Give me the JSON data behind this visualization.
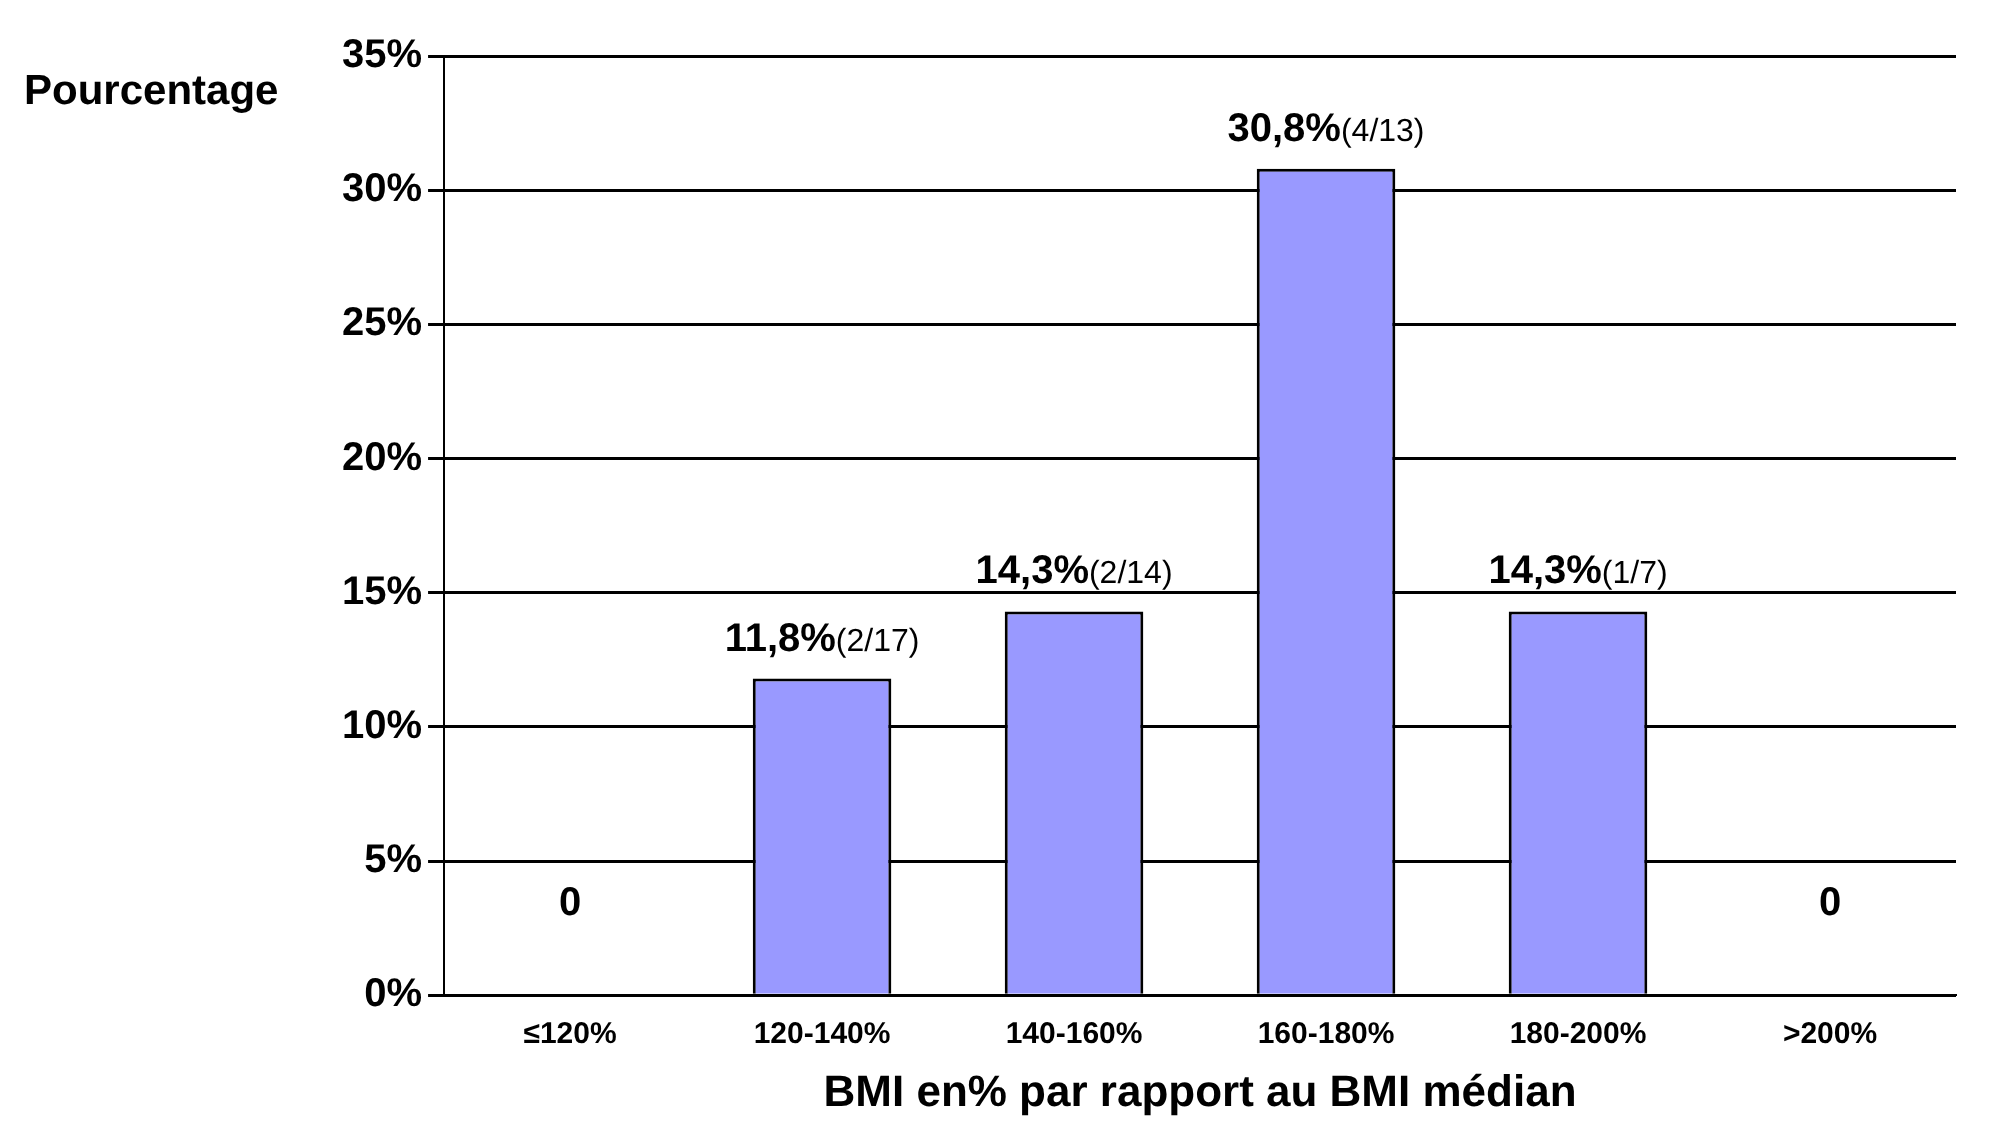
{
  "chart_data": {
    "type": "bar",
    "xlabel": "BMI en% par rapport au BMI médian",
    "ylabel": "Pourcentage",
    "categories": [
      "≤120%",
      "120-140%",
      "140-160%",
      "160-180%",
      "180-200%",
      ">200%"
    ],
    "values": [
      0,
      11.8,
      14.3,
      30.8,
      14.3,
      0
    ],
    "value_labels": [
      "0",
      "11,8%(2/17)",
      "14,3%(2/14)",
      "30,8%(4/13)",
      "14,3%(1/7)",
      "0"
    ],
    "color": "#9999ff",
    "ylim": [
      0,
      35
    ],
    "yticks": [
      {
        "value": 0,
        "label": "0%"
      },
      {
        "value": 5,
        "label": "5%"
      },
      {
        "value": 10,
        "label": "10%"
      },
      {
        "value": 15,
        "label": "15%"
      },
      {
        "value": 20,
        "label": "20%"
      },
      {
        "value": 25,
        "label": "25%"
      },
      {
        "value": 30,
        "label": "30%"
      },
      {
        "value": 35,
        "label": "35%"
      }
    ],
    "grid": "y",
    "legend": false
  }
}
